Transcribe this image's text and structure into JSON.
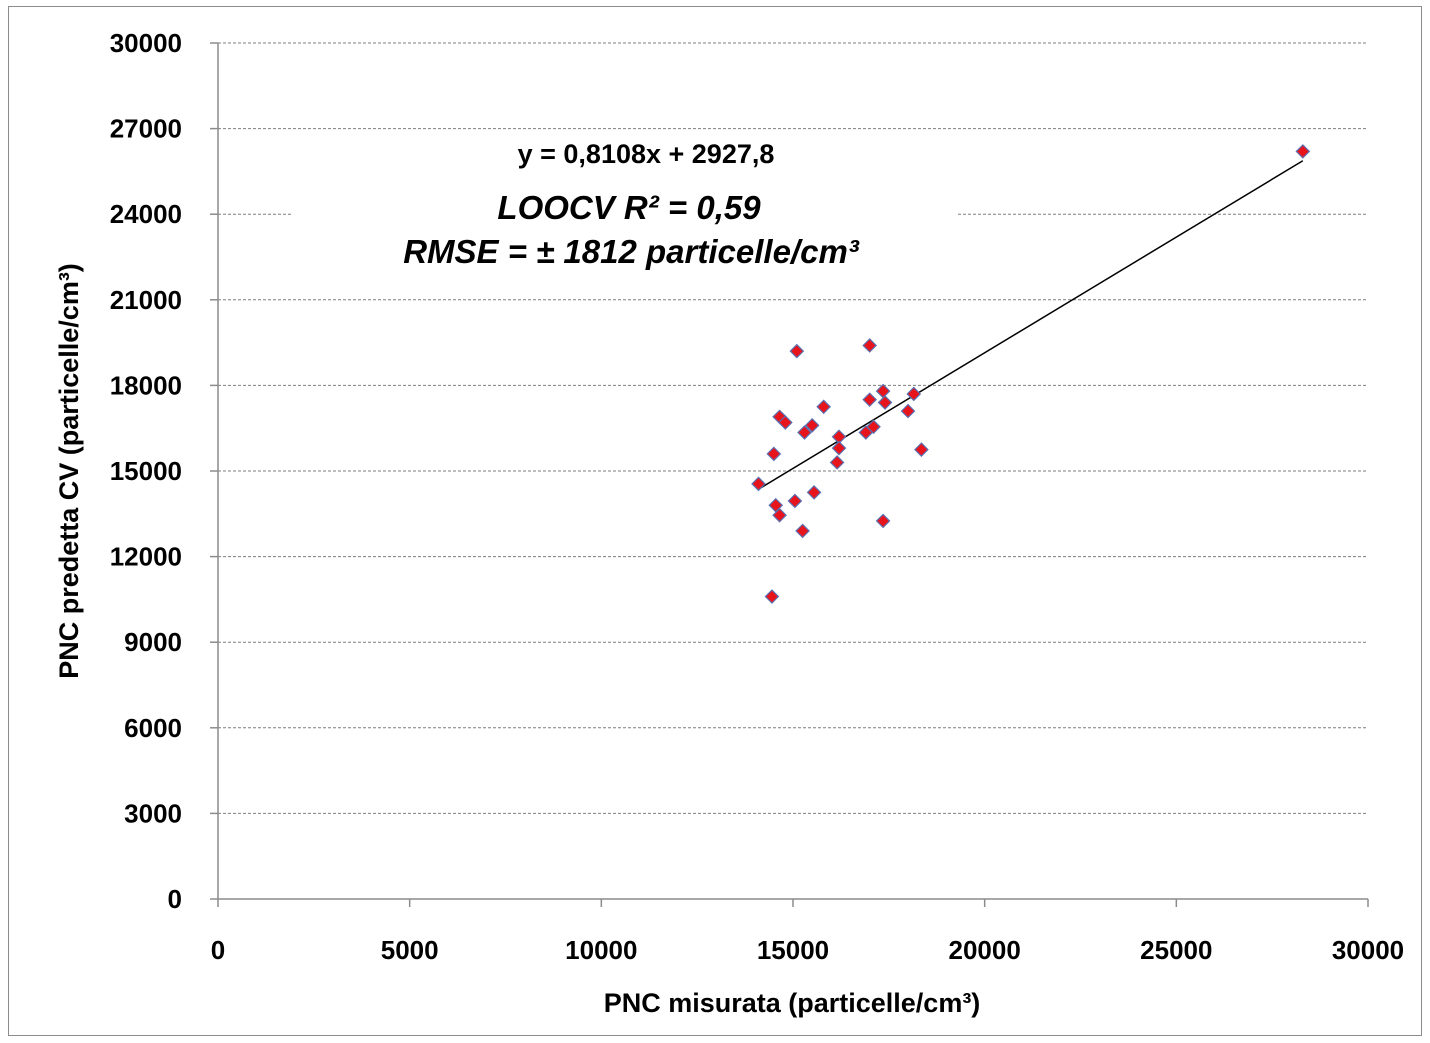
{
  "chart_data": {
    "type": "scatter",
    "xlabel": "PNC misurata (particelle/cm³)",
    "ylabel": "PNC predetta CV (particelle/cm³)",
    "xlim": [
      0,
      30000
    ],
    "ylim": [
      0,
      30000
    ],
    "x_ticks": [
      "0",
      "5000",
      "10000",
      "15000",
      "20000",
      "25000",
      "30000"
    ],
    "y_ticks": [
      "0",
      "3000",
      "6000",
      "9000",
      "12000",
      "15000",
      "18000",
      "21000",
      "24000",
      "27000",
      "30000"
    ],
    "grid": "horizontal-dashed",
    "point_color": "#e8141c",
    "point_edge_color": "#5a6fb0",
    "trendline": {
      "slope": 0.8108,
      "intercept": 2927.8,
      "x_range": [
        14100,
        28300
      ],
      "label": "y = 0,8108x + 2927,8"
    },
    "annotations": [
      "LOOCV R² = 0,59",
      "RMSE = ± 1812 particelle/cm³"
    ],
    "points": [
      {
        "x": 14100,
        "y": 14550
      },
      {
        "x": 14450,
        "y": 10600
      },
      {
        "x": 14500,
        "y": 15600
      },
      {
        "x": 14550,
        "y": 13800
      },
      {
        "x": 14650,
        "y": 13450
      },
      {
        "x": 14650,
        "y": 16900
      },
      {
        "x": 14800,
        "y": 16700
      },
      {
        "x": 15050,
        "y": 13950
      },
      {
        "x": 15100,
        "y": 19200
      },
      {
        "x": 15250,
        "y": 12900
      },
      {
        "x": 15300,
        "y": 16350
      },
      {
        "x": 15500,
        "y": 16600
      },
      {
        "x": 15550,
        "y": 14250
      },
      {
        "x": 15800,
        "y": 17250
      },
      {
        "x": 16150,
        "y": 15300
      },
      {
        "x": 16200,
        "y": 16200
      },
      {
        "x": 16200,
        "y": 15800
      },
      {
        "x": 16900,
        "y": 16350
      },
      {
        "x": 17000,
        "y": 19400
      },
      {
        "x": 17000,
        "y": 17500
      },
      {
        "x": 17100,
        "y": 16550
      },
      {
        "x": 17350,
        "y": 13250
      },
      {
        "x": 17350,
        "y": 17800
      },
      {
        "x": 17400,
        "y": 17400
      },
      {
        "x": 18000,
        "y": 17100
      },
      {
        "x": 18150,
        "y": 17700
      },
      {
        "x": 18350,
        "y": 15750
      },
      {
        "x": 28300,
        "y": 26200
      }
    ]
  }
}
